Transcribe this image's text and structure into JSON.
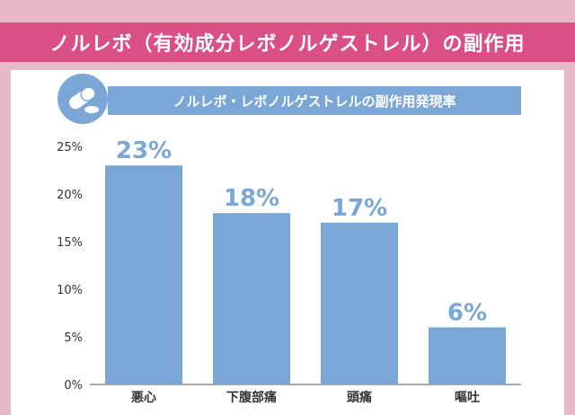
{
  "title": "ノルレボ（有効成分レボノルゲストレル）の副作用",
  "subtitle": "ノルレボ・レボノルゲストレルの副作用発現率",
  "icon": "pill-icon",
  "colors": {
    "title_bg": "#d94f86",
    "bar": "#7aa7d6",
    "frame": "#e8b9c9"
  },
  "chart_data": {
    "type": "bar",
    "categories": [
      "悪心",
      "下腹部痛",
      "頭痛",
      "嘔吐"
    ],
    "values": [
      23,
      18,
      17,
      6
    ],
    "data_labels": [
      "23%",
      "18%",
      "17%",
      "6%"
    ],
    "yticks": [
      "0%",
      "5%",
      "10%",
      "15%",
      "20%",
      "25%"
    ],
    "ylim": [
      0,
      25
    ],
    "title": "ノルレボ・レボノルゲストレルの副作用発現率",
    "xlabel": "",
    "ylabel": ""
  }
}
